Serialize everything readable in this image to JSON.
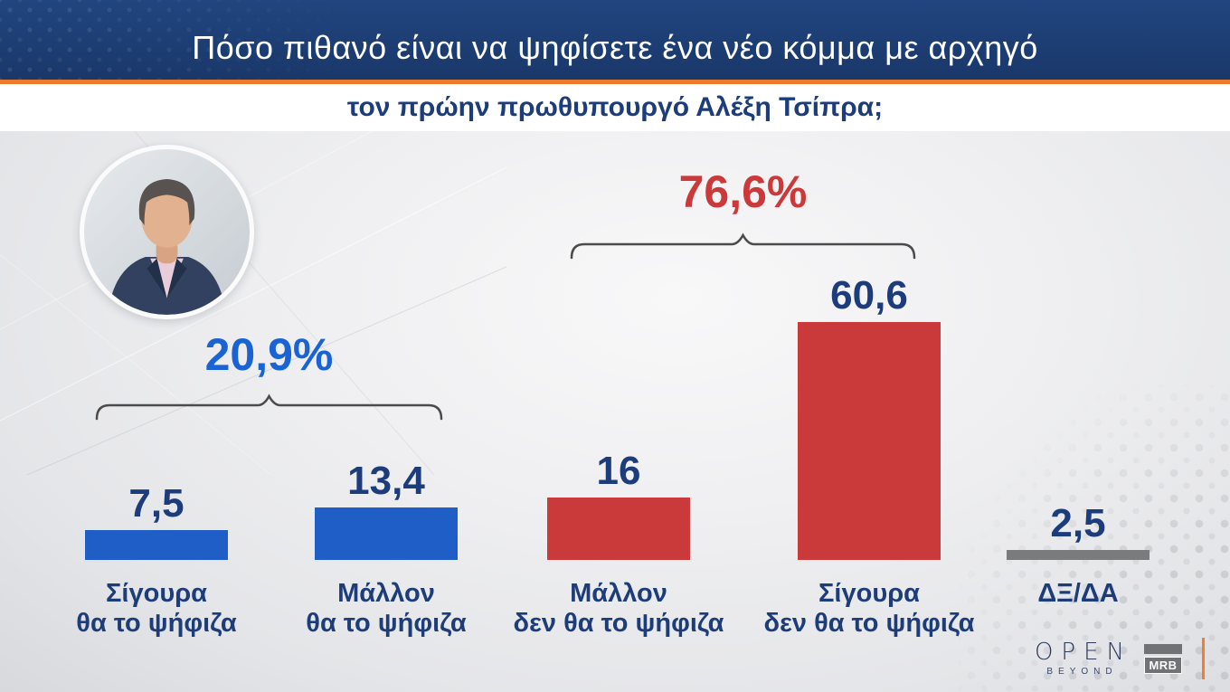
{
  "header": {
    "title": "Πόσο πιθανό είναι να ψηφίσετε ένα νέο κόμμα με αρχηγό"
  },
  "subtitle": "τον πρώην πρωθυπουργό Αλέξη Τσίπρα;",
  "portrait": {
    "alt_name": "alexis-tsipras-photo"
  },
  "chart_data": {
    "type": "bar",
    "categories": [
      "Σίγουρα θα το ψήφιζα",
      "Μάλλον θα το ψήφιζα",
      "Μάλλον δεν θα το ψήφιζα",
      "Σίγουρα δεν θα το ψήφιζα",
      "ΔΞ/ΔΑ"
    ],
    "category_lines": [
      [
        "Σίγουρα",
        "θα το ψήφιζα"
      ],
      [
        "Μάλλον",
        "θα το ψήφιζα"
      ],
      [
        "Μάλλον",
        "δεν θα το ψήφιζα"
      ],
      [
        "Σίγουρα",
        "δεν θα το ψήφιζα"
      ],
      [
        "ΔΞ/ΔΑ"
      ]
    ],
    "values": [
      7.5,
      13.4,
      16,
      60.6,
      2.5
    ],
    "value_labels": [
      "7,5",
      "13,4",
      "16",
      "60,6",
      "2,5"
    ],
    "bar_colors": [
      "#1f5ec7",
      "#1f5ec7",
      "#cb3a3a",
      "#cb3a3a",
      "#7a7b7c"
    ],
    "groups": [
      {
        "label": "20,9%",
        "color": "#1a63d4",
        "bars": [
          0,
          1
        ]
      },
      {
        "label": "76,6%",
        "color": "#cb3a3a",
        "bars": [
          2,
          3
        ]
      }
    ],
    "title": "Πόσο πιθανό είναι να ψηφίσετε ένα νέο κόμμα με αρχηγό τον πρώην πρωθυπουργό Αλέξη Τσίπρα;",
    "xlabel": "",
    "ylabel": "",
    "ylim": [
      0,
      65
    ],
    "grid": false,
    "legend": false
  },
  "branding": {
    "channel": "OPEN",
    "channel_sub": "BEYOND",
    "pollster": "MRB"
  },
  "colors": {
    "header_bg": "#1d3e74",
    "accent_orange": "#ee7b2d",
    "navy_text": "#1d3d7a",
    "blue_bar": "#1f5ec7",
    "red_bar": "#cb3a3a",
    "gray_bar": "#7a7b7c",
    "bracket": "#4b4b4b"
  }
}
